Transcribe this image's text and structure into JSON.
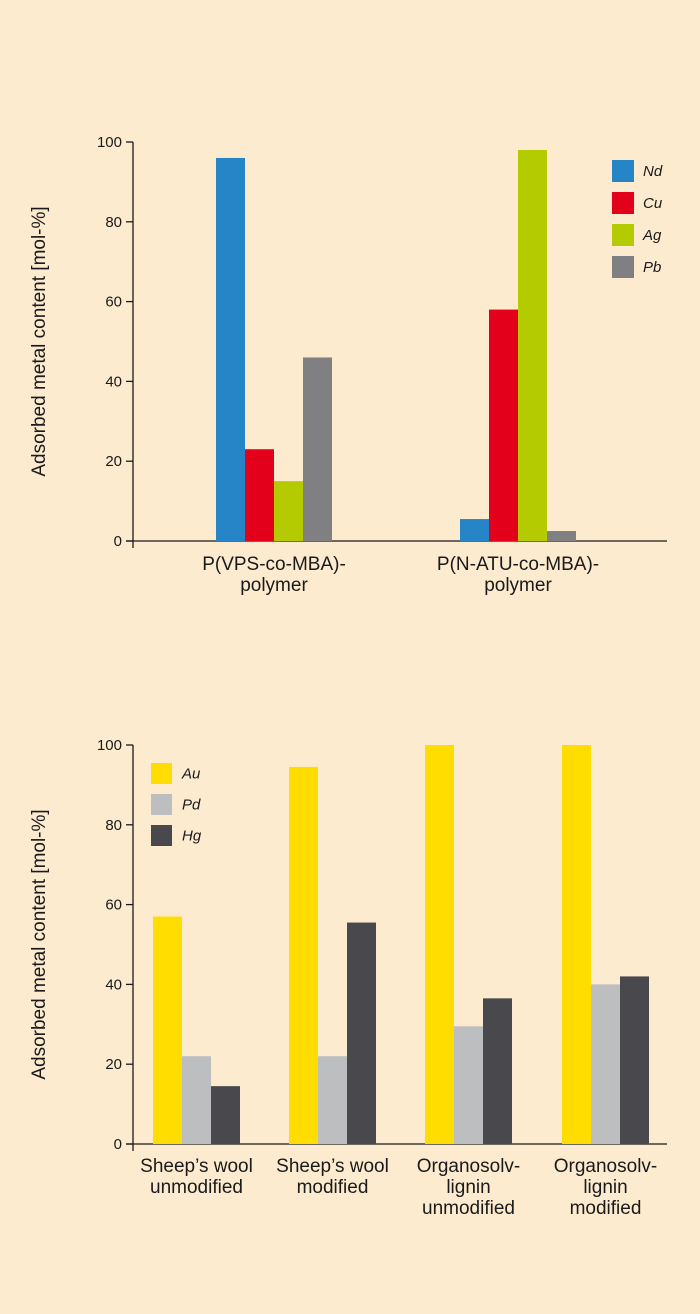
{
  "chart_data": [
    {
      "type": "bar",
      "ylabel": "Adsorbed metal content [mol-%]",
      "ylim": [
        0,
        100
      ],
      "yticks": [
        0,
        20,
        40,
        60,
        80,
        100
      ],
      "categories": [
        [
          "P(VPS-co-MBA)-",
          "polymer"
        ],
        [
          "P(N-ATU-co-MBA)-",
          "polymer"
        ]
      ],
      "series": [
        {
          "name": "Nd",
          "color": "#2585c7",
          "values": [
            96,
            5.5
          ]
        },
        {
          "name": "Cu",
          "color": "#e2001a",
          "values": [
            23,
            58
          ]
        },
        {
          "name": "Ag",
          "color": "#b3cb00",
          "values": [
            15,
            98
          ]
        },
        {
          "name": "Pb",
          "color": "#808083",
          "values": [
            46,
            2.5
          ]
        }
      ],
      "legend_position": "top-right",
      "grid": false
    },
    {
      "type": "bar",
      "ylabel": "Adsorbed metal content [mol-%]",
      "ylim": [
        0,
        100
      ],
      "yticks": [
        0,
        20,
        40,
        60,
        80,
        100
      ],
      "categories": [
        [
          "Sheep’s wool",
          "unmodified"
        ],
        [
          "Sheep’s wool",
          "modified"
        ],
        [
          "Organosolv-",
          "lignin",
          "unmodified"
        ],
        [
          "Organosolv-",
          "lignin",
          "modified"
        ]
      ],
      "series": [
        {
          "name": "Au",
          "color": "#ffdd00",
          "values": [
            57,
            94.5,
            100,
            100
          ]
        },
        {
          "name": "Pd",
          "color": "#bdbec0",
          "values": [
            22,
            22,
            29.5,
            40
          ]
        },
        {
          "name": "Hg",
          "color": "#49484c",
          "values": [
            14.5,
            55.5,
            36.5,
            42
          ]
        }
      ],
      "legend_position": "top-left",
      "grid": false
    }
  ]
}
